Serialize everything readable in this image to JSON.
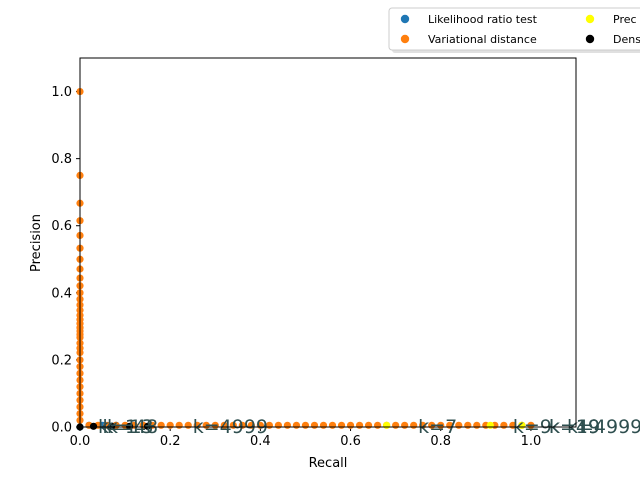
{
  "chart_data": {
    "type": "scatter",
    "xlabel": "Recall",
    "ylabel": "Precision",
    "xlim": [
      0.0,
      1.1
    ],
    "ylim": [
      0.0,
      1.1
    ],
    "xticks": [
      "0.0",
      "0.2",
      "0.4",
      "0.6",
      "0.8",
      "1.0"
    ],
    "yticks": [
      "0.0",
      "0.2",
      "0.4",
      "0.6",
      "0.8",
      "1.0"
    ],
    "grid": false,
    "legend_placement": "upper-right-outside",
    "series": [
      {
        "name": "Likelihood ratio test",
        "color": "#1f77b4",
        "points": [
          [
            0.0,
            0.0
          ],
          [
            0.02,
            0.005
          ],
          [
            0.05,
            0.005
          ],
          [
            0.08,
            0.005
          ]
        ]
      },
      {
        "name": "Variational distance",
        "color": "#ff7f0e",
        "points": [
          [
            0.0,
            1.0
          ],
          [
            0.0,
            0.75
          ],
          [
            0.0,
            0.667
          ],
          [
            0.0,
            0.615
          ],
          [
            0.0,
            0.571
          ],
          [
            0.0,
            0.533
          ],
          [
            0.0,
            0.5
          ],
          [
            0.0,
            0.471
          ],
          [
            0.0,
            0.444
          ],
          [
            0.0,
            0.421
          ],
          [
            0.0,
            0.4
          ],
          [
            0.0,
            0.381
          ],
          [
            0.0,
            0.364
          ],
          [
            0.0,
            0.348
          ],
          [
            0.0,
            0.333
          ],
          [
            0.0,
            0.32
          ],
          [
            0.0,
            0.308
          ],
          [
            0.0,
            0.296
          ],
          [
            0.0,
            0.286
          ],
          [
            0.0,
            0.276
          ],
          [
            0.0,
            0.267
          ],
          [
            0.0,
            0.25
          ],
          [
            0.0,
            0.235
          ],
          [
            0.0,
            0.222
          ],
          [
            0.0,
            0.2
          ],
          [
            0.0,
            0.18
          ],
          [
            0.0,
            0.16
          ],
          [
            0.0,
            0.14
          ],
          [
            0.0,
            0.12
          ],
          [
            0.0,
            0.1
          ],
          [
            0.0,
            0.08
          ],
          [
            0.0,
            0.06
          ],
          [
            0.0,
            0.04
          ],
          [
            0.0,
            0.02
          ],
          [
            0.02,
            0.005
          ],
          [
            0.04,
            0.005
          ],
          [
            0.06,
            0.005
          ],
          [
            0.08,
            0.005
          ],
          [
            0.1,
            0.005
          ],
          [
            0.12,
            0.005
          ],
          [
            0.14,
            0.005
          ],
          [
            0.16,
            0.005
          ],
          [
            0.18,
            0.005
          ],
          [
            0.2,
            0.005
          ],
          [
            0.22,
            0.005
          ],
          [
            0.24,
            0.005
          ],
          [
            0.26,
            0.005
          ],
          [
            0.28,
            0.005
          ],
          [
            0.3,
            0.005
          ],
          [
            0.32,
            0.005
          ],
          [
            0.34,
            0.005
          ],
          [
            0.36,
            0.005
          ],
          [
            0.38,
            0.005
          ],
          [
            0.4,
            0.005
          ],
          [
            0.42,
            0.005
          ],
          [
            0.44,
            0.005
          ],
          [
            0.46,
            0.005
          ],
          [
            0.48,
            0.005
          ],
          [
            0.5,
            0.005
          ],
          [
            0.52,
            0.005
          ],
          [
            0.54,
            0.005
          ],
          [
            0.56,
            0.005
          ],
          [
            0.58,
            0.005
          ],
          [
            0.6,
            0.005
          ],
          [
            0.62,
            0.005
          ],
          [
            0.64,
            0.005
          ],
          [
            0.66,
            0.005
          ],
          [
            0.68,
            0.005
          ],
          [
            0.7,
            0.005
          ],
          [
            0.72,
            0.005
          ],
          [
            0.74,
            0.005
          ],
          [
            0.76,
            0.005
          ],
          [
            0.78,
            0.005
          ],
          [
            0.8,
            0.005
          ],
          [
            0.82,
            0.005
          ],
          [
            0.84,
            0.005
          ],
          [
            0.86,
            0.005
          ],
          [
            0.88,
            0.005
          ],
          [
            0.9,
            0.005
          ],
          [
            0.92,
            0.005
          ],
          [
            0.94,
            0.005
          ],
          [
            0.96,
            0.005
          ],
          [
            0.98,
            0.005
          ],
          [
            1.0,
            0.005
          ]
        ]
      },
      {
        "name": "Prec",
        "color": "#ffff00",
        "points": [
          [
            0.68,
            0.005
          ],
          [
            0.91,
            0.005
          ],
          [
            0.98,
            0.005
          ]
        ]
      },
      {
        "name": "Dens",
        "color": "#000000",
        "points": [
          [
            0.0,
            0.0
          ],
          [
            0.03,
            0.002
          ],
          [
            0.07,
            0.002
          ],
          [
            0.11,
            0.002
          ],
          [
            0.15,
            0.002
          ]
        ]
      }
    ],
    "annotations": [
      {
        "text": "k=1",
        "x": 0.04,
        "y": 0.0
      },
      {
        "text": "k=13",
        "x": 0.05,
        "y": 0.0
      },
      {
        "text": "k=48",
        "x": 0.06,
        "y": 0.0
      },
      {
        "text": "k=4999",
        "x": 0.25,
        "y": 0.0
      },
      {
        "text": "k=7",
        "x": 0.75,
        "y": 0.0
      },
      {
        "text": "k=9",
        "x": 0.96,
        "y": 0.0
      },
      {
        "text": "k=19",
        "x": 1.04,
        "y": 0.0
      },
      {
        "text": "k=49",
        "x": 1.04,
        "y": 0.0
      },
      {
        "text": "k=4999",
        "x": 1.08,
        "y": 0.0
      }
    ]
  }
}
